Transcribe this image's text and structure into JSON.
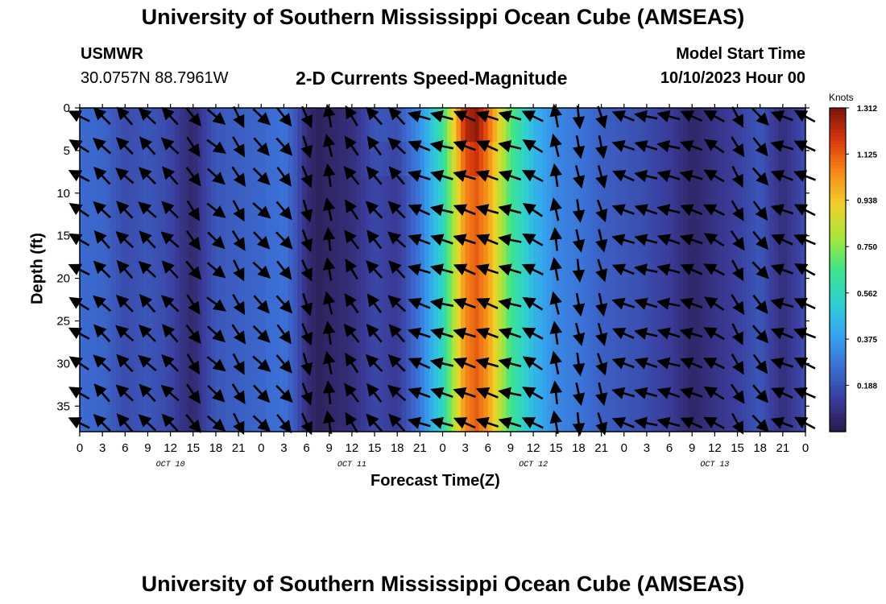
{
  "page": {
    "title": "University of Southern Mississippi Ocean Cube (AMSEAS)",
    "station": "USMWR",
    "coords": "30.0757N  88.7961W",
    "subtitle": "2-D Currents Speed-Magnitude",
    "model_start_label": "Model Start Time",
    "model_start_value": "10/10/2023 Hour 00",
    "bottom_title": "University of Southern Mississippi Ocean Cube (AMSEAS)"
  },
  "chart_data": {
    "type": "heatmap",
    "title": "2-D Currents Speed-Magnitude",
    "xlabel": "Forecast Time(Z)",
    "ylabel": "Depth (ft)",
    "x_tick_labels": [
      "0",
      "3",
      "6",
      "9",
      "12",
      "15",
      "18",
      "21",
      "0",
      "3",
      "6",
      "9",
      "12",
      "15",
      "18",
      "21",
      "0",
      "3",
      "6",
      "9",
      "12",
      "15",
      "18",
      "21",
      "0",
      "3",
      "6",
      "9",
      "12",
      "15",
      "18",
      "21",
      "0"
    ],
    "x_day_labels": [
      "OCT 10",
      "OCT 11",
      "OCT 12",
      "OCT 13"
    ],
    "x_range_hours": [
      0,
      96
    ],
    "y_ticks": [
      0,
      5,
      10,
      15,
      20,
      25,
      30,
      35
    ],
    "y_range_ft": [
      0,
      38
    ],
    "y_inverted": true,
    "colorbar": {
      "units": "Knots",
      "range": [
        0.0,
        1.312
      ],
      "tick_labels": [
        "1.312",
        "1.125",
        "0.938",
        "0.750",
        "0.562",
        "0.375",
        "0.188"
      ],
      "colors": [
        "#2a1a4a",
        "#3a3c9a",
        "#3b6fd6",
        "#35a5ef",
        "#2fd0d0",
        "#3ee48a",
        "#a8e63a",
        "#f0d12a",
        "#f78a18",
        "#d9380d",
        "#7a1208"
      ]
    },
    "speed_profile_hours": [
      0,
      3,
      6,
      9,
      12,
      13.5,
      15,
      16.5,
      18,
      21,
      24,
      27,
      28.5,
      30,
      31.5,
      33,
      36,
      39,
      42,
      45,
      48,
      49.5,
      51,
      52.5,
      54,
      57,
      60,
      63,
      66,
      69,
      72,
      75,
      78,
      81,
      84,
      87,
      90,
      93,
      96
    ],
    "speed_profile_knots": [
      0.25,
      0.24,
      0.17,
      0.2,
      0.16,
      0.1,
      0.06,
      0.14,
      0.2,
      0.22,
      0.24,
      0.27,
      0.2,
      0.08,
      0.03,
      0.05,
      0.08,
      0.16,
      0.12,
      0.28,
      0.55,
      0.8,
      1.05,
      1.12,
      1.02,
      0.65,
      0.45,
      0.32,
      0.28,
      0.22,
      0.2,
      0.17,
      0.13,
      0.05,
      0.1,
      0.14,
      0.2,
      0.08,
      0.18
    ],
    "surface_boost_knots": [
      0,
      0,
      0,
      0,
      0,
      0,
      0,
      0,
      0,
      0,
      0,
      0,
      0,
      0,
      0,
      0,
      0,
      0.05,
      0.08,
      0.08,
      0.1,
      0.15,
      0.22,
      0.2,
      0.12,
      0.05,
      0,
      0,
      0,
      0,
      0,
      0,
      0,
      0,
      0,
      0,
      0,
      0,
      0
    ],
    "vector_hours": [
      0,
      3,
      6,
      9,
      12,
      15,
      18,
      21,
      24,
      27,
      30,
      33,
      36,
      39,
      42,
      45,
      48,
      51,
      54,
      57,
      60,
      63,
      66,
      69,
      72,
      75,
      78,
      81,
      84,
      87,
      90,
      93,
      96
    ],
    "vector_direction_deg": [
      300,
      315,
      315,
      315,
      315,
      145,
      130,
      150,
      135,
      140,
      160,
      350,
      325,
      320,
      315,
      290,
      285,
      290,
      290,
      285,
      300,
      350,
      170,
      165,
      290,
      285,
      285,
      290,
      300,
      150,
      140,
      290,
      295
    ]
  }
}
